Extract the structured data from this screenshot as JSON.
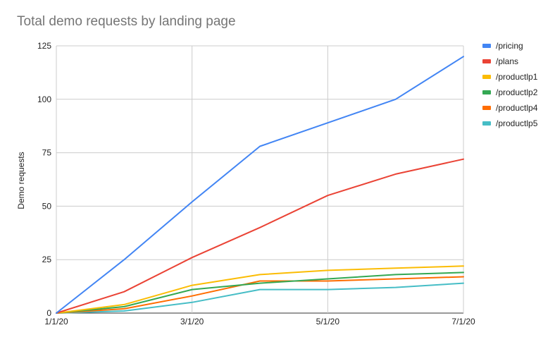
{
  "chart_data": {
    "type": "line",
    "title": "Total demo requests by landing page",
    "xlabel": "",
    "ylabel": "Demo requests",
    "x": [
      "1/1/20",
      "2/1/20",
      "3/1/20",
      "4/1/20",
      "5/1/20",
      "6/1/20",
      "7/1/20"
    ],
    "x_tick_labels": [
      "1/1/20",
      "3/1/20",
      "5/1/20",
      "7/1/20"
    ],
    "y_ticks": [
      0,
      25,
      50,
      75,
      100,
      125
    ],
    "ylim": [
      0,
      125
    ],
    "grid": true,
    "legend_position": "right",
    "series": [
      {
        "name": "/pricing",
        "color": "#4285F4",
        "values": [
          0,
          25,
          52,
          78,
          89,
          100,
          120
        ]
      },
      {
        "name": "/plans",
        "color": "#EA4335",
        "values": [
          0,
          10,
          26,
          40,
          55,
          65,
          72
        ]
      },
      {
        "name": "/productlp1",
        "color": "#FBBC04",
        "values": [
          0,
          4,
          13,
          18,
          20,
          21,
          22
        ]
      },
      {
        "name": "/productlp2",
        "color": "#34A853",
        "values": [
          0,
          3,
          11,
          14,
          16,
          18,
          19
        ]
      },
      {
        "name": "/productlp4",
        "color": "#FF6D01",
        "values": [
          0,
          2,
          8,
          15,
          15,
          16,
          17
        ]
      },
      {
        "name": "/productlp5",
        "color": "#46BDC6",
        "values": [
          0,
          1,
          5,
          11,
          11,
          12,
          14
        ]
      }
    ]
  }
}
